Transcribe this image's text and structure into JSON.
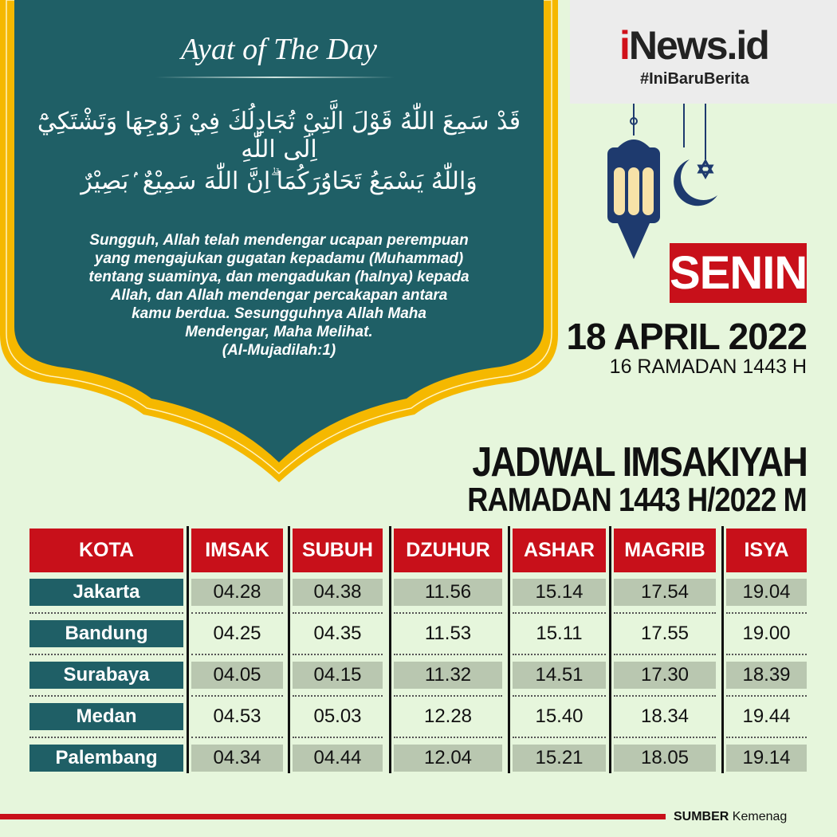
{
  "ayat": {
    "title": "Ayat of The Day",
    "arabic_line1": "قَدْ سَمِعَ اللّٰهُ قَوْلَ الَّتِيْ تُجَادِلُكَ فِيْ زَوْجِهَا وَتَشْتَكِيْٓ اِلَى اللّٰهِ",
    "arabic_line2": "وَاللّٰهُ يَسْمَعُ تَحَاوُرَكُمَا ۗاِنَّ اللّٰهَ سَمِيْعٌ ۢبَصِيْرٌ",
    "translation": [
      "Sungguh, Allah telah mendengar ucapan perempuan",
      "yang mengajukan gugatan kepadamu (Muhammad)",
      "tentang suaminya, dan mengadukan (halnya) kepada",
      "Allah, dan Allah mendengar percakapan antara",
      "kamu berdua. Sesungguhnya Allah Maha",
      "Mendengar, Maha Melihat."
    ],
    "reference": "(Al-Mujadilah:1)"
  },
  "logo": {
    "brand_i": "i",
    "brand_rest": "News.id",
    "hashtag": "#IniBaruBerita"
  },
  "date": {
    "day": "SENIN",
    "gregorian": "18 APRIL 2022",
    "hijri": "16 RAMADAN 1443 H"
  },
  "heading": {
    "line1": "JADWAL IMSAKIYAH",
    "line2": "RAMADAN 1443 H/2022 M"
  },
  "table": {
    "headers": [
      "KOTA",
      "IMSAK",
      "SUBUH",
      "DZUHUR",
      "ASHAR",
      "MAGRIB",
      "ISYA"
    ],
    "rows": [
      [
        "Jakarta",
        "04.28",
        "04.38",
        "11.56",
        "15.14",
        "17.54",
        "19.04"
      ],
      [
        "Bandung",
        "04.25",
        "04.35",
        "11.53",
        "15.11",
        "17.55",
        "19.00"
      ],
      [
        "Surabaya",
        "04.05",
        "04.15",
        "11.32",
        "14.51",
        "17.30",
        "18.39"
      ],
      [
        "Medan",
        "04.53",
        "05.03",
        "12.28",
        "15.40",
        "18.34",
        "19.44"
      ],
      [
        "Palembang",
        "04.34",
        "04.44",
        "12.04",
        "15.21",
        "18.05",
        "19.14"
      ]
    ]
  },
  "source": {
    "label": "SUMBER",
    "value": "Kemenag"
  },
  "colors": {
    "teal": "#1f5f66",
    "gold": "#f5b800",
    "red": "#c8101a",
    "background": "#e6f6dc"
  }
}
